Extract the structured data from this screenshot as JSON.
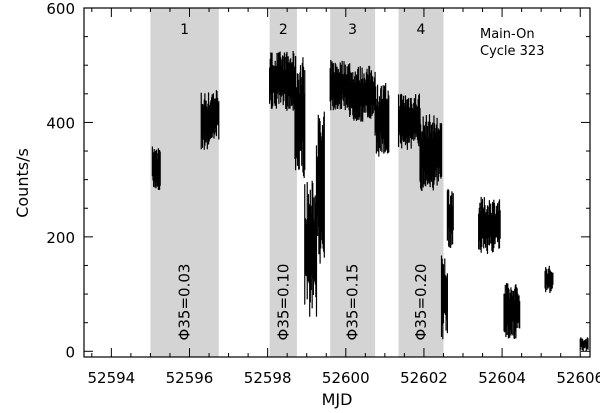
{
  "chart_data": {
    "type": "scatter",
    "title": "",
    "xlabel": "MJD",
    "ylabel": "Counts/s",
    "xlim": [
      52593.3,
      52606.25
    ],
    "ylim": [
      -10,
      600
    ],
    "xticks": [
      52594,
      52596,
      52598,
      52600,
      52602,
      52604,
      52606
    ],
    "xtick_labels": [
      "52594",
      "52596",
      "52598",
      "52600",
      "52602",
      "52604",
      "52606"
    ],
    "yticks": [
      0,
      200,
      400,
      600
    ],
    "ytick_labels": [
      "0",
      "200",
      "400",
      "600"
    ],
    "annotation": [
      "Main-On",
      "Cycle 323"
    ],
    "annotation_position": "top-right",
    "grid": false,
    "shaded_intervals": [
      {
        "label": "1",
        "x_start": 52595.0,
        "x_end": 52596.75,
        "phase_label": "Φ35=0.03",
        "color": "#d4d4d4"
      },
      {
        "label": "2",
        "x_start": 52598.05,
        "x_end": 52598.75,
        "phase_label": "Φ35=0.10",
        "color": "#d4d4d4"
      },
      {
        "label": "3",
        "x_start": 52599.6,
        "x_end": 52600.75,
        "phase_label": "Φ35=0.15",
        "color": "#d4d4d4"
      },
      {
        "label": "4",
        "x_start": 52601.35,
        "x_end": 52602.5,
        "phase_label": "Φ35=0.20",
        "color": "#d4d4d4"
      }
    ],
    "series": [
      {
        "color": "#000000",
        "segments": [
          {
            "x_start": 52595.05,
            "x_end": 52595.25,
            "y_low": 280,
            "y_high": 360
          },
          {
            "x_start": 52596.3,
            "x_end": 52596.55,
            "y_low": 350,
            "y_high": 455
          },
          {
            "x_start": 52596.55,
            "x_end": 52596.75,
            "y_low": 370,
            "y_high": 460
          },
          {
            "x_start": 52598.05,
            "x_end": 52598.7,
            "y_low": 420,
            "y_high": 525
          },
          {
            "x_start": 52598.7,
            "x_end": 52598.95,
            "y_low": 300,
            "y_high": 520
          },
          {
            "x_start": 52598.95,
            "x_end": 52599.25,
            "y_low": 60,
            "y_high": 300
          },
          {
            "x_start": 52599.25,
            "x_end": 52599.45,
            "y_low": 150,
            "y_high": 420
          },
          {
            "x_start": 52599.6,
            "x_end": 52600.1,
            "y_low": 420,
            "y_high": 510
          },
          {
            "x_start": 52600.1,
            "x_end": 52600.75,
            "y_low": 400,
            "y_high": 500
          },
          {
            "x_start": 52600.75,
            "x_end": 52601.1,
            "y_low": 340,
            "y_high": 470
          },
          {
            "x_start": 52601.35,
            "x_end": 52601.9,
            "y_low": 350,
            "y_high": 455
          },
          {
            "x_start": 52601.9,
            "x_end": 52602.45,
            "y_low": 280,
            "y_high": 415
          },
          {
            "x_start": 52602.45,
            "x_end": 52602.6,
            "y_low": 20,
            "y_high": 170
          },
          {
            "x_start": 52602.6,
            "x_end": 52602.75,
            "y_low": 180,
            "y_high": 290
          },
          {
            "x_start": 52603.4,
            "x_end": 52603.95,
            "y_low": 170,
            "y_high": 270
          },
          {
            "x_start": 52604.05,
            "x_end": 52604.45,
            "y_low": 20,
            "y_high": 120
          },
          {
            "x_start": 52605.1,
            "x_end": 52605.3,
            "y_low": 100,
            "y_high": 150
          },
          {
            "x_start": 52606.0,
            "x_end": 52606.2,
            "y_low": 0,
            "y_high": 25
          }
        ]
      }
    ]
  }
}
